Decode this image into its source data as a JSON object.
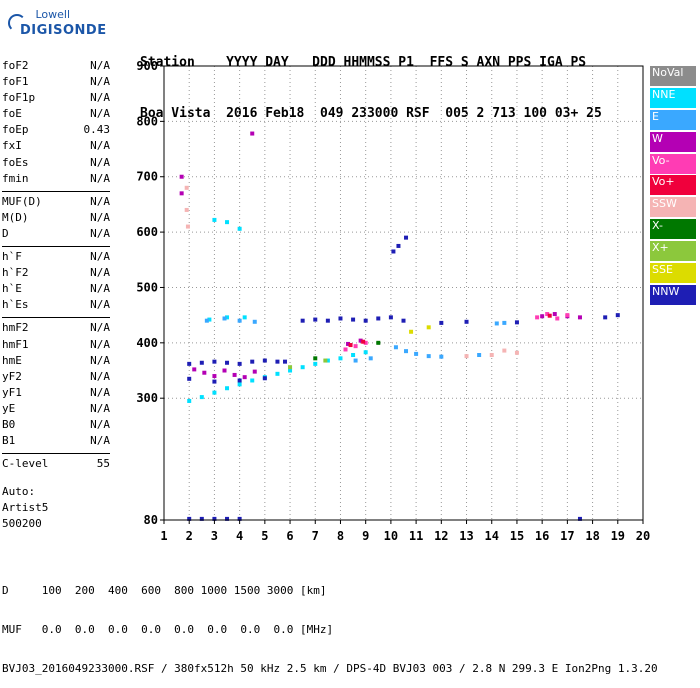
{
  "logo": {
    "top": "Lowell",
    "bottom": "DIGISONDE"
  },
  "header": {
    "line1": "Station    YYYY DAY   DDD HHMMSS P1  FFS S AXN PPS IGA PS",
    "line2": "Boa Vista  2016 Feb18  049 233000 RSF  005 2 713 100 03+ 25"
  },
  "params_group1": [
    {
      "name": "foF2",
      "value": "N/A"
    },
    {
      "name": "foF1",
      "value": "N/A"
    },
    {
      "name": "foF1p",
      "value": "N/A"
    },
    {
      "name": "foE",
      "value": "N/A"
    },
    {
      "name": "foEp",
      "value": "0.43"
    },
    {
      "name": "fxI",
      "value": "N/A"
    },
    {
      "name": "foEs",
      "value": "N/A"
    },
    {
      "name": "fmin",
      "value": "N/A"
    }
  ],
  "params_group2": [
    {
      "name": "MUF(D)",
      "value": "N/A"
    },
    {
      "name": "M(D)",
      "value": "N/A"
    },
    {
      "name": "D",
      "value": "N/A"
    }
  ],
  "params_group3": [
    {
      "name": "h`F",
      "value": "N/A"
    },
    {
      "name": "h`F2",
      "value": "N/A"
    },
    {
      "name": "h`E",
      "value": "N/A"
    },
    {
      "name": "h`Es",
      "value": "N/A"
    }
  ],
  "params_group4": [
    {
      "name": "hmF2",
      "value": "N/A"
    },
    {
      "name": "hmF1",
      "value": "N/A"
    },
    {
      "name": "hmE",
      "value": "N/A"
    },
    {
      "name": "yF2",
      "value": "N/A"
    },
    {
      "name": "yF1",
      "value": "N/A"
    },
    {
      "name": "yE",
      "value": "N/A"
    },
    {
      "name": "B0",
      "value": "N/A"
    },
    {
      "name": "B1",
      "value": "N/A"
    }
  ],
  "clevel": {
    "name": "C-level",
    "value": "55"
  },
  "auto": {
    "line1": "Auto:",
    "line2": "Artist5",
    "line3": "500200"
  },
  "footer": {
    "d_line": "D     100  200  400  600  800 1000 1500 3000 [km]",
    "muf_line": "MUF   0.0  0.0  0.0  0.0  0.0  0.0  0.0  0.0 [MHz]",
    "file_line": "BVJ03_2016049233000.RSF / 380fx512h 50 kHz 2.5 km / DPS-4D BVJ03 003 / 2.8 N 299.3 E Ion2Png 1.3.20"
  },
  "legend": [
    {
      "label": "NoVal",
      "color": "#8c8c8c"
    },
    {
      "label": "NNE",
      "color": "#00e0ff"
    },
    {
      "label": "E",
      "color": "#3aa8ff"
    },
    {
      "label": "W",
      "color": "#b400b4"
    },
    {
      "label": "Vo-",
      "color": "#ff3cb4"
    },
    {
      "label": "Vo+",
      "color": "#f0003c"
    },
    {
      "label": "SSW",
      "color": "#f5b4b4"
    },
    {
      "label": "X-",
      "color": "#007800"
    },
    {
      "label": "X+",
      "color": "#8cc83c"
    },
    {
      "label": "SSE",
      "color": "#dcdc00"
    },
    {
      "label": "NNW",
      "color": "#1e1eb4"
    }
  ],
  "chart_data": {
    "type": "scatter",
    "title": "",
    "xlabel": "",
    "ylabel": "",
    "xlim": [
      1,
      20
    ],
    "ylim": [
      80,
      900
    ],
    "xticks": [
      1,
      2,
      3,
      4,
      5,
      6,
      7,
      8,
      9,
      10,
      11,
      12,
      13,
      14,
      15,
      16,
      17,
      18,
      19,
      20
    ],
    "yticks": [
      80,
      300,
      400,
      500,
      600,
      700,
      800,
      900
    ],
    "grid": true,
    "series": [
      {
        "name": "NNE",
        "color": "#00e0ff",
        "points": [
          [
            2.0,
            295
          ],
          [
            2.5,
            302
          ],
          [
            3.0,
            310
          ],
          [
            3.5,
            318
          ],
          [
            4.0,
            325
          ],
          [
            4.5,
            332
          ],
          [
            5.0,
            338
          ],
          [
            5.5,
            344
          ],
          [
            6.0,
            350
          ],
          [
            6.5,
            356
          ],
          [
            7.0,
            362
          ],
          [
            7.5,
            368
          ],
          [
            8.0,
            372
          ],
          [
            8.5,
            378
          ],
          [
            9.0,
            383
          ],
          [
            3.0,
            622
          ],
          [
            3.5,
            618
          ],
          [
            4.0,
            606
          ],
          [
            2.8,
            442
          ],
          [
            3.5,
            446
          ],
          [
            4.2,
            446
          ]
        ]
      },
      {
        "name": "E",
        "color": "#3aa8ff",
        "points": [
          [
            2.7,
            440
          ],
          [
            3.4,
            444
          ],
          [
            4.0,
            440
          ],
          [
            4.6,
            438
          ],
          [
            10.2,
            392
          ],
          [
            10.6,
            385
          ],
          [
            11.0,
            380
          ],
          [
            11.5,
            376
          ],
          [
            12.0,
            375
          ],
          [
            13.5,
            378
          ],
          [
            14.2,
            435
          ],
          [
            14.5,
            436
          ],
          [
            8.6,
            368
          ],
          [
            9.2,
            372
          ]
        ]
      },
      {
        "name": "W",
        "color": "#b400b4",
        "points": [
          [
            2.2,
            352
          ],
          [
            2.6,
            346
          ],
          [
            3.0,
            340
          ],
          [
            3.4,
            350
          ],
          [
            3.8,
            342
          ],
          [
            4.2,
            338
          ],
          [
            4.6,
            348
          ],
          [
            1.7,
            700
          ],
          [
            1.7,
            670
          ],
          [
            4.5,
            778
          ],
          [
            8.3,
            398
          ],
          [
            8.8,
            404
          ],
          [
            16.0,
            448
          ],
          [
            16.5,
            452
          ],
          [
            17.0,
            448
          ],
          [
            17.5,
            446
          ]
        ]
      },
      {
        "name": "Vo-",
        "color": "#ff3cb4",
        "points": [
          [
            8.2,
            388
          ],
          [
            8.6,
            394
          ],
          [
            9.0,
            400
          ],
          [
            15.8,
            446
          ],
          [
            16.2,
            452
          ],
          [
            16.6,
            444
          ],
          [
            17.0,
            450
          ]
        ]
      },
      {
        "name": "Vo+",
        "color": "#f0003c",
        "points": [
          [
            8.4,
            396
          ],
          [
            8.9,
            402
          ],
          [
            16.3,
            449
          ]
        ]
      },
      {
        "name": "SSW",
        "color": "#f5b4b4",
        "points": [
          [
            1.9,
            680
          ],
          [
            1.9,
            640
          ],
          [
            1.95,
            610
          ],
          [
            14.0,
            378
          ],
          [
            14.5,
            386
          ],
          [
            15.0,
            382
          ],
          [
            13.0,
            376
          ]
        ]
      },
      {
        "name": "X-",
        "color": "#007800",
        "points": [
          [
            7.0,
            372
          ],
          [
            9.5,
            400
          ]
        ]
      },
      {
        "name": "X+",
        "color": "#8cc83c",
        "points": [
          [
            6.0,
            356
          ],
          [
            7.4,
            368
          ]
        ]
      },
      {
        "name": "SSE",
        "color": "#dcdc00",
        "points": [
          [
            10.8,
            420
          ],
          [
            11.5,
            428
          ]
        ]
      },
      {
        "name": "NNW",
        "color": "#1e1eb4",
        "points": [
          [
            2.0,
            362
          ],
          [
            2.5,
            364
          ],
          [
            3.0,
            366
          ],
          [
            3.5,
            364
          ],
          [
            4.0,
            362
          ],
          [
            4.5,
            366
          ],
          [
            5.0,
            368
          ],
          [
            5.5,
            366
          ],
          [
            2.0,
            335
          ],
          [
            3.0,
            330
          ],
          [
            4.0,
            332
          ],
          [
            5.0,
            336
          ],
          [
            5.8,
            366
          ],
          [
            6.5,
            440
          ],
          [
            7.0,
            442
          ],
          [
            7.5,
            440
          ],
          [
            8.0,
            444
          ],
          [
            8.5,
            442
          ],
          [
            9.0,
            440
          ],
          [
            9.5,
            444
          ],
          [
            10.0,
            446
          ],
          [
            10.5,
            440
          ],
          [
            10.3,
            575
          ],
          [
            10.6,
            590
          ],
          [
            10.1,
            565
          ],
          [
            12.0,
            436
          ],
          [
            13.0,
            438
          ],
          [
            15.0,
            437
          ],
          [
            18.5,
            446
          ],
          [
            19.0,
            450
          ],
          [
            2.0,
            82
          ],
          [
            2.5,
            82
          ],
          [
            3.0,
            82
          ],
          [
            3.5,
            82
          ],
          [
            4.0,
            82
          ],
          [
            17.5,
            82
          ]
        ]
      }
    ]
  }
}
